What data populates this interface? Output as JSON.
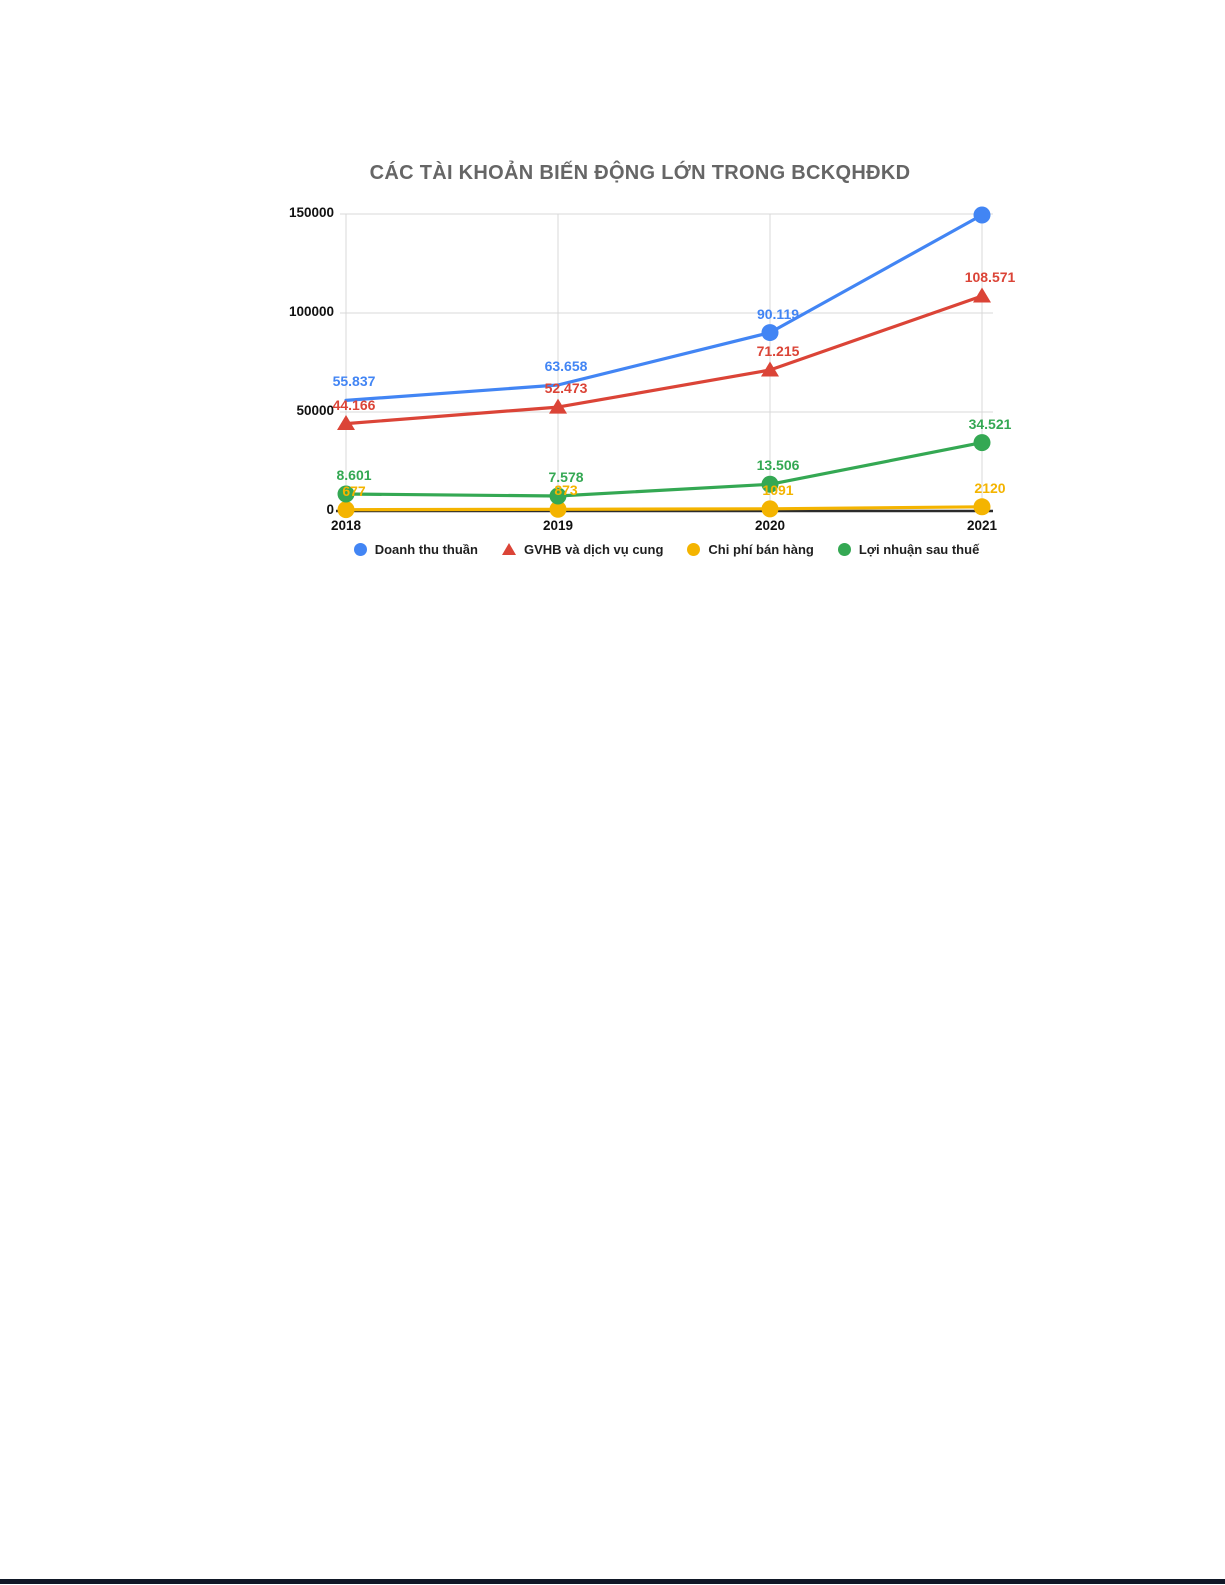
{
  "page": {
    "background": "#ffffff",
    "footer_bar_color": "#111827"
  },
  "chart_data": {
    "type": "line",
    "title": "CÁC TÀI KHOẢN BIẾN ĐỘNG LỚN TRONG BCKQHĐKD",
    "categories": [
      "2018",
      "2019",
      "2020",
      "2021"
    ],
    "series": [
      {
        "name": "Doanh thu thuần",
        "color": "#4285f4",
        "marker": "circle",
        "values": [
          55837,
          63658,
          90119,
          149500
        ],
        "labels": [
          "55.837",
          "63.658",
          "90.119",
          ""
        ],
        "marker_visible": [
          false,
          false,
          true,
          true
        ]
      },
      {
        "name": "GVHB và dịch vụ cung",
        "color": "#db4437",
        "marker": "triangle",
        "values": [
          44166,
          52473,
          71215,
          108571
        ],
        "labels": [
          "44.166",
          "52.473",
          "71.215",
          "108.571"
        ],
        "marker_visible": [
          true,
          true,
          true,
          true
        ]
      },
      {
        "name": "Chi phí bán hàng",
        "color": "#f4b400",
        "marker": "circle",
        "values": [
          677,
          873,
          1091,
          2120
        ],
        "labels": [
          "677",
          "873",
          "1091",
          "2120"
        ],
        "marker_visible": [
          true,
          true,
          true,
          true
        ]
      },
      {
        "name": "Lợi nhuận sau thuế",
        "color": "#34a853",
        "marker": "circle",
        "values": [
          8601,
          7578,
          13506,
          34521
        ],
        "labels": [
          "8.601",
          "7.578",
          "13.506",
          "34.521"
        ],
        "marker_visible": [
          true,
          true,
          true,
          true
        ]
      }
    ],
    "y_ticks": [
      0,
      50000,
      100000,
      150000
    ],
    "y_tick_labels": [
      "0",
      "50000",
      "100000",
      "150000"
    ],
    "ylim": [
      0,
      150000
    ],
    "grid": true,
    "legend_position": "bottom",
    "style": {
      "grid_color": "#d9d9d9",
      "axis_color": "#2b2b2b",
      "title_color": "#666666",
      "tick_color": "#111111"
    }
  }
}
